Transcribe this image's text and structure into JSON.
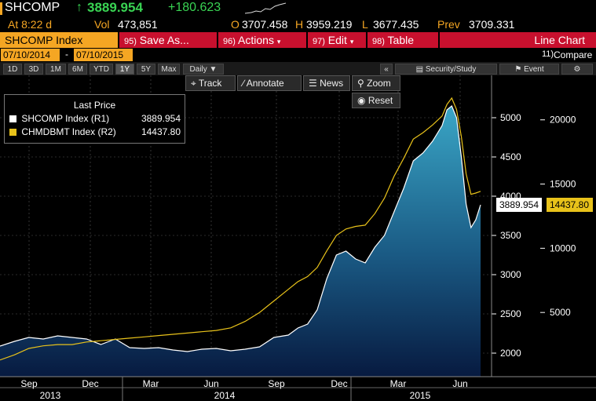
{
  "header": {
    "ticker": "SHCOMP",
    "last": "3889.954",
    "change": "+180.623",
    "time_label": "At 8:22 d",
    "vol_label": "Vol",
    "vol": "473,851",
    "open_label": "O",
    "open": "3707.458",
    "high_label": "H",
    "high": "3959.219",
    "low_label": "L",
    "low": "3677.435",
    "prev_label": "Prev",
    "prev": "3709.331"
  },
  "menu": {
    "security": "SHCOMP Index",
    "save_num": "95)",
    "save": "Save As...",
    "actions_num": "96)",
    "actions": "Actions",
    "edit_num": "97)",
    "edit": "Edit",
    "table_num": "98)",
    "table": "Table",
    "chart_type": "Line Chart"
  },
  "range": {
    "start": "07/10/2014",
    "dash": "-",
    "end": "07/10/2015",
    "compare_num": "11)",
    "compare": "Compare"
  },
  "periods": [
    "1D",
    "3D",
    "1M",
    "6M",
    "YTD",
    "1Y",
    "5Y",
    "Max"
  ],
  "selected_period": "1Y",
  "frequency": "Daily",
  "right_tools": {
    "collapse": "«",
    "security_study": "Security/Study",
    "event": "Event"
  },
  "tools": {
    "track": "Track",
    "annotate": "Annotate",
    "news": "News",
    "zoom": "Zoom",
    "reset": "Reset"
  },
  "chart_data": {
    "type": "area",
    "title": "Last Price",
    "x_tick_labels": [
      "Sep",
      "Dec",
      "Mar",
      "Jun",
      "Sep",
      "Dec",
      "Mar",
      "Jun"
    ],
    "x_year_labels": [
      "2013",
      "2014",
      "2015"
    ],
    "y_left": {
      "ticks": [
        2000,
        2500,
        3000,
        3500,
        4000,
        4500,
        5000
      ],
      "range": [
        1700,
        5300
      ]
    },
    "y_right": {
      "ticks": [
        5000,
        10000,
        15000,
        20000
      ],
      "range": [
        0,
        22000
      ]
    },
    "series": [
      {
        "name": "SHCOMP Index  (R1)",
        "last_value": "3889.954",
        "color": "#ffffff",
        "axis": "left",
        "style": "area",
        "x": [
          0,
          0.03,
          0.06,
          0.09,
          0.12,
          0.15,
          0.18,
          0.21,
          0.24,
          0.27,
          0.3,
          0.33,
          0.36,
          0.39,
          0.42,
          0.45,
          0.48,
          0.51,
          0.54,
          0.57,
          0.6,
          0.62,
          0.64,
          0.66,
          0.68,
          0.7,
          0.72,
          0.74,
          0.76,
          0.78,
          0.8,
          0.82,
          0.84,
          0.86,
          0.88,
          0.9,
          0.92,
          0.93,
          0.94,
          0.95,
          0.96,
          0.97,
          0.98,
          0.99,
          1.0
        ],
        "y": [
          2090,
          2150,
          2200,
          2180,
          2220,
          2200,
          2180,
          2110,
          2180,
          2070,
          2060,
          2070,
          2040,
          2020,
          2050,
          2060,
          2030,
          2050,
          2080,
          2200,
          2230,
          2320,
          2370,
          2550,
          2950,
          3250,
          3300,
          3200,
          3150,
          3350,
          3500,
          3800,
          4100,
          4450,
          4550,
          4700,
          4900,
          5100,
          5150,
          5000,
          4500,
          3900,
          3600,
          3700,
          3890
        ]
      },
      {
        "name": "CHMDBMT Index  (R2)",
        "last_value": "14437.80",
        "color": "#e8c21a",
        "axis": "right",
        "style": "line",
        "x": [
          0,
          0.03,
          0.06,
          0.09,
          0.12,
          0.15,
          0.18,
          0.21,
          0.24,
          0.27,
          0.3,
          0.33,
          0.36,
          0.39,
          0.42,
          0.45,
          0.48,
          0.51,
          0.54,
          0.57,
          0.6,
          0.62,
          0.64,
          0.66,
          0.68,
          0.7,
          0.72,
          0.74,
          0.76,
          0.78,
          0.8,
          0.82,
          0.84,
          0.86,
          0.88,
          0.9,
          0.92,
          0.93,
          0.94,
          0.95,
          0.96,
          0.97,
          0.98,
          0.99,
          1.0
        ],
        "y": [
          1300,
          1700,
          2200,
          2400,
          2500,
          2500,
          2700,
          2800,
          2900,
          3000,
          3100,
          3200,
          3300,
          3400,
          3500,
          3600,
          3800,
          4300,
          5000,
          5900,
          6800,
          7400,
          7800,
          8500,
          9800,
          11000,
          11500,
          11700,
          11800,
          12700,
          13900,
          15600,
          17000,
          18500,
          19000,
          19600,
          20300,
          21200,
          21700,
          20800,
          18700,
          15800,
          14200,
          14300,
          14437
        ]
      }
    ],
    "grid": true,
    "legend": "top-left"
  }
}
